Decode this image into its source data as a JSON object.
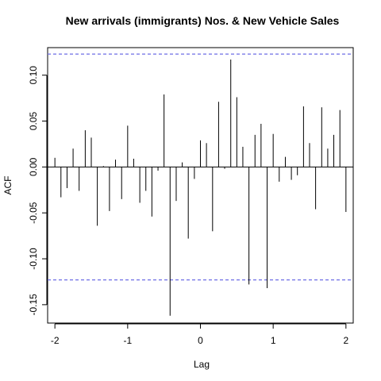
{
  "chart_data": {
    "type": "bar",
    "title": "New arrivals (immigrants) Nos. & New Vehicle Sales",
    "xlabel": "Lag",
    "ylabel": "ACF",
    "xlim": [
      -2.1,
      2.1
    ],
    "ylim": [
      -0.17,
      0.13
    ],
    "x_ticks": [
      -2,
      -1,
      0,
      1,
      2
    ],
    "x_tick_labels": [
      "-2",
      "-1",
      "0",
      "1",
      "2"
    ],
    "y_ticks": [
      -0.15,
      -0.1,
      -0.05,
      0.0,
      0.05,
      0.1
    ],
    "y_tick_labels": [
      "-0.15",
      "-0.10",
      "-0.05",
      "0.00",
      "0.05",
      "0.10"
    ],
    "confidence_limits": [
      0.123,
      -0.123
    ],
    "confidence_line_color": "#6e6ee6",
    "lags": [
      -2.0,
      -1.917,
      -1.833,
      -1.75,
      -1.667,
      -1.583,
      -1.5,
      -1.417,
      -1.333,
      -1.25,
      -1.167,
      -1.083,
      -1.0,
      -0.917,
      -0.833,
      -0.75,
      -0.667,
      -0.583,
      -0.5,
      -0.417,
      -0.333,
      -0.25,
      -0.167,
      -0.083,
      0.0,
      0.083,
      0.167,
      0.25,
      0.333,
      0.417,
      0.5,
      0.583,
      0.667,
      0.75,
      0.833,
      0.917,
      1.0,
      1.083,
      1.167,
      1.25,
      1.333,
      1.417,
      1.5,
      1.583,
      1.667,
      1.75,
      1.833,
      1.917,
      2.0
    ],
    "acf": [
      0.01,
      -0.033,
      -0.023,
      0.02,
      -0.026,
      0.04,
      0.032,
      -0.064,
      0.001,
      -0.048,
      0.008,
      -0.035,
      0.045,
      0.009,
      -0.039,
      -0.026,
      -0.054,
      -0.004,
      0.079,
      -0.162,
      -0.037,
      0.005,
      -0.078,
      -0.013,
      0.029,
      0.026,
      -0.07,
      0.071,
      -0.002,
      0.117,
      0.076,
      0.022,
      -0.128,
      0.035,
      0.047,
      -0.132,
      0.036,
      -0.016,
      0.011,
      -0.014,
      -0.009,
      0.066,
      0.026,
      -0.046,
      0.065,
      0.02,
      0.035,
      0.062,
      -0.049
    ]
  }
}
